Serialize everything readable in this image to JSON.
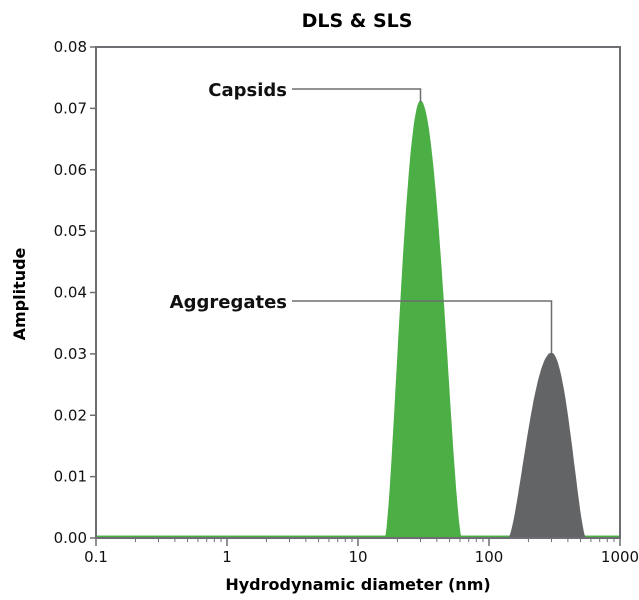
{
  "chart_data": {
    "type": "area",
    "title": "DLS & SLS",
    "xlabel": "Hydrodynamic diameter (nm)",
    "ylabel": "Amplitude",
    "x_scale": "log",
    "xlim": [
      0.1,
      1000
    ],
    "ylim": [
      0,
      0.08
    ],
    "x_ticks": [
      "0.1",
      "1",
      "10",
      "100",
      "1000"
    ],
    "y_ticks": [
      "0.00",
      "0.01",
      "0.02",
      "0.03",
      "0.04",
      "0.05",
      "0.06",
      "0.07",
      "0.08"
    ],
    "grid": false,
    "series": [
      {
        "name": "Capsids",
        "color": "#4caf46",
        "peak_x": 30,
        "peak_y": 0.0713,
        "range": [
          16,
          62
        ],
        "baseline": 0.0004
      },
      {
        "name": "Aggregates",
        "color": "#636466",
        "peak_x": 300,
        "peak_y": 0.0302,
        "range": [
          140,
          550
        ]
      }
    ],
    "annotations": [
      {
        "text": "Capsids",
        "target": "Capsids"
      },
      {
        "text": "Aggregates",
        "target": "Aggregates"
      }
    ]
  },
  "colors": {
    "axis": "#6d6e71",
    "callout_line": "#6d6e71"
  }
}
